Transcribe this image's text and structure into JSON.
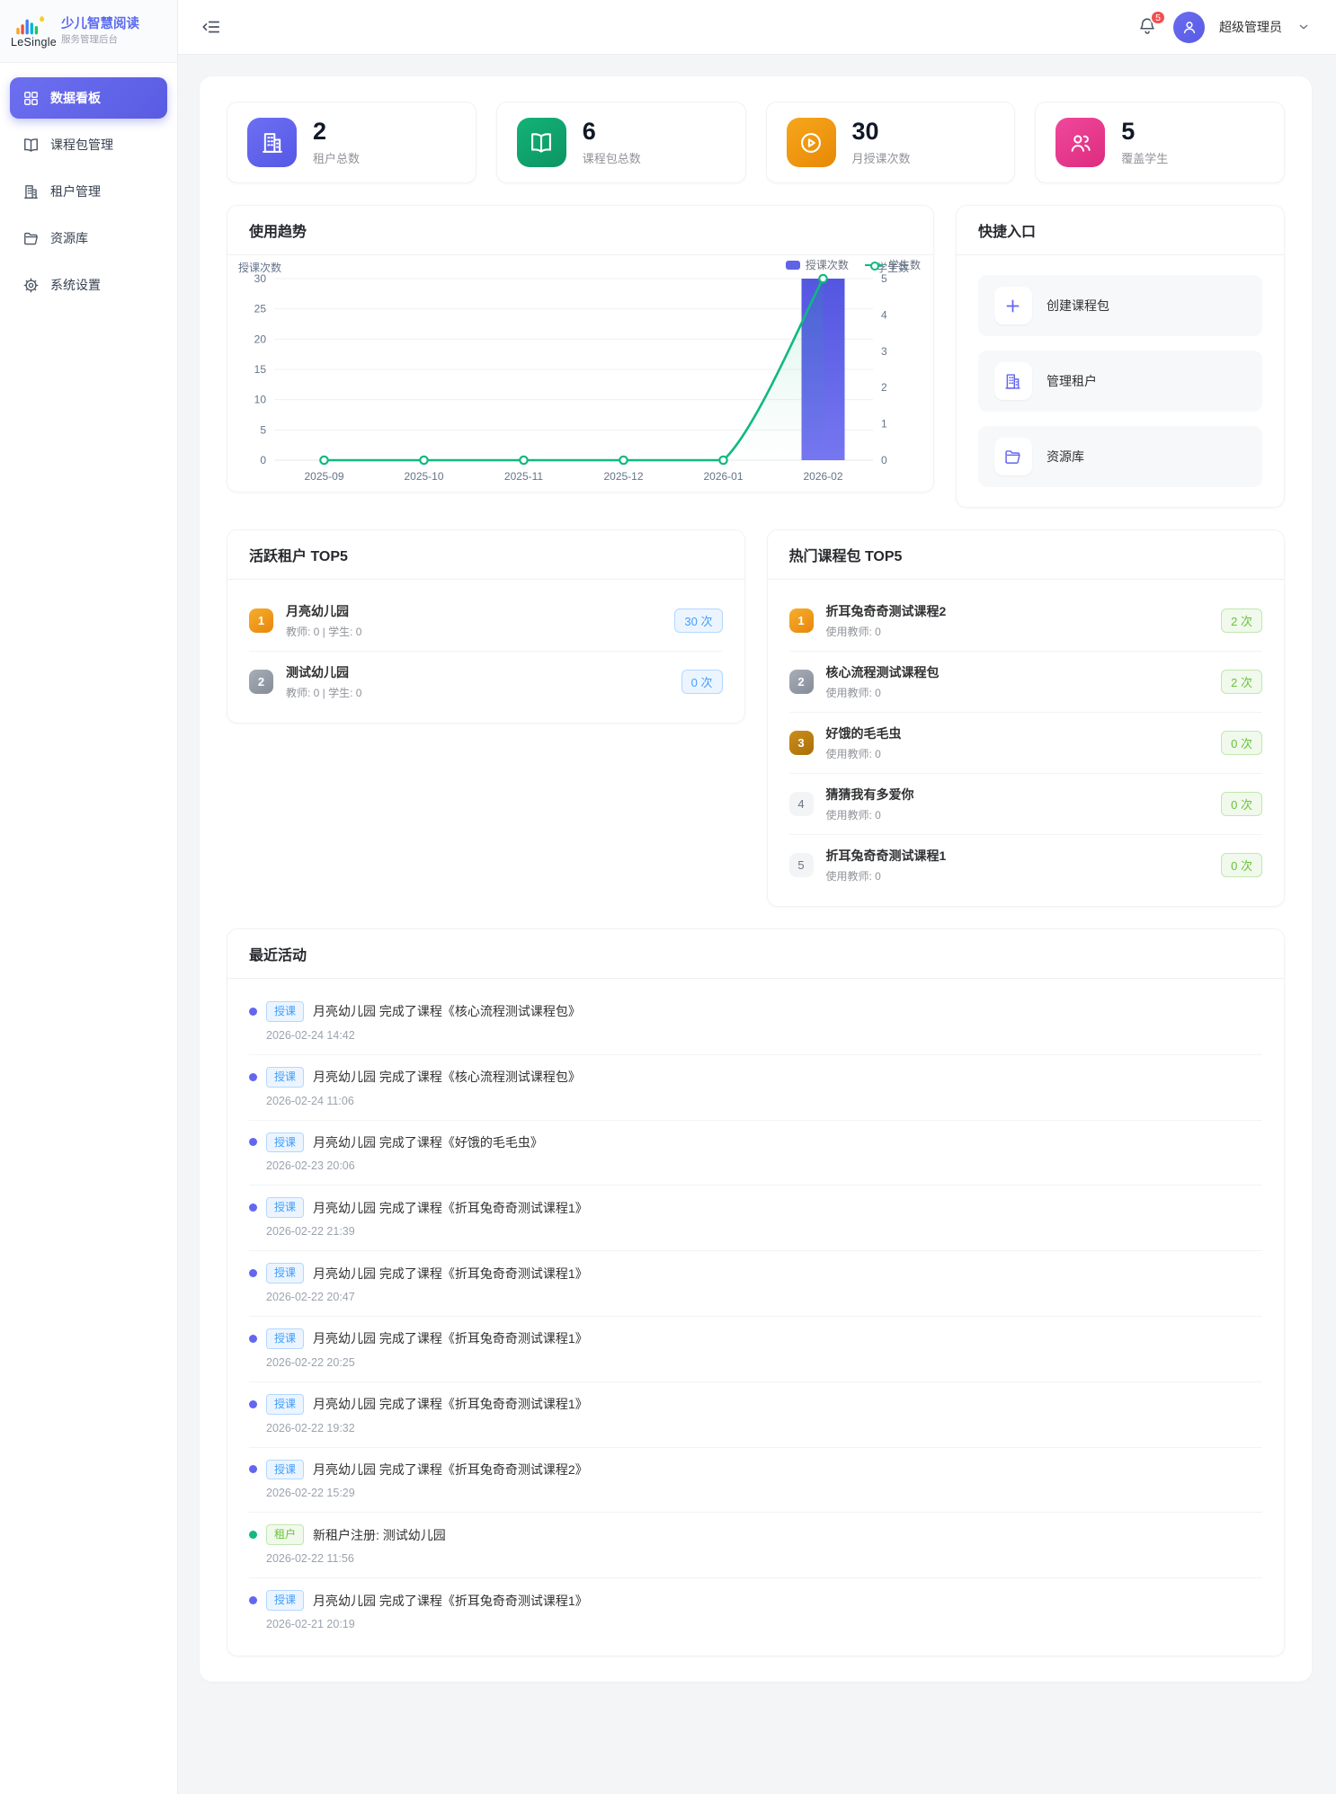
{
  "brand": {
    "logo_text": "LeSingle",
    "title": "少儿智慧阅读",
    "subtitle": "服务管理后台"
  },
  "header": {
    "notification_count": "5",
    "user_name": "超级管理员"
  },
  "sidebar": {
    "items": [
      {
        "label": "数据看板",
        "icon": "dashboard-icon",
        "active": true
      },
      {
        "label": "课程包管理",
        "icon": "book-icon",
        "active": false
      },
      {
        "label": "租户管理",
        "icon": "building-icon",
        "active": false
      },
      {
        "label": "资源库",
        "icon": "folder-icon",
        "active": false
      },
      {
        "label": "系统设置",
        "icon": "gear-icon",
        "active": false
      }
    ]
  },
  "stats": [
    {
      "value": "2",
      "label": "租户总数",
      "icon": "building-icon",
      "color1": "#6d6ff2",
      "color2": "#5558e6"
    },
    {
      "value": "6",
      "label": "课程包总数",
      "icon": "book-icon",
      "color1": "#13b377",
      "color2": "#0d9463"
    },
    {
      "value": "30",
      "label": "月授课次数",
      "icon": "play-icon",
      "color1": "#f6a71c",
      "color2": "#e88806"
    },
    {
      "value": "5",
      "label": "覆盖学生",
      "icon": "students-icon",
      "color1": "#f0489c",
      "color2": "#dd2c7f"
    }
  ],
  "trend": {
    "title": "使用趋势"
  },
  "chart_data": {
    "type": "bar",
    "title": "使用趋势",
    "categories": [
      "2025-09",
      "2025-10",
      "2025-11",
      "2025-12",
      "2026-01",
      "2026-02"
    ],
    "series": [
      {
        "name": "授课次数",
        "type": "bar",
        "axis": "left",
        "values": [
          0,
          0,
          0,
          0,
          0,
          30
        ],
        "color": "#6063e8"
      },
      {
        "name": "学生数",
        "type": "line",
        "axis": "right",
        "values": [
          0,
          0,
          0,
          0,
          0,
          5
        ],
        "color": "#10b981"
      }
    ],
    "left_axis": {
      "name": "授课次数",
      "min": 0,
      "max": 30,
      "step": 5
    },
    "right_axis": {
      "name": "学生数",
      "min": 0,
      "max": 5,
      "step": 1
    },
    "legend": [
      "授课次数",
      "学生数"
    ],
    "legend_position": "top-right",
    "grid": true
  },
  "quick": {
    "title": "快捷入口",
    "items": [
      {
        "label": "创建课程包",
        "icon": "plus-icon"
      },
      {
        "label": "管理租户",
        "icon": "building-icon"
      },
      {
        "label": "资源库",
        "icon": "folder-icon"
      }
    ]
  },
  "tenants": {
    "title": "活跃租户 TOP5",
    "badge_style": "blue",
    "items": [
      {
        "rank": "1",
        "name": "月亮幼儿园",
        "meta": "教师: 0 | 学生: 0",
        "count": "30 次"
      },
      {
        "rank": "2",
        "name": "测试幼儿园",
        "meta": "教师: 0 | 学生: 0",
        "count": "0 次"
      }
    ]
  },
  "courses": {
    "title": "热门课程包 TOP5",
    "badge_style": "green",
    "items": [
      {
        "rank": "1",
        "name": "折耳兔奇奇测试课程2",
        "meta": "使用教师: 0",
        "count": "2 次"
      },
      {
        "rank": "2",
        "name": "核心流程测试课程包",
        "meta": "使用教师: 0",
        "count": "2 次"
      },
      {
        "rank": "3",
        "name": "好饿的毛毛虫",
        "meta": "使用教师: 0",
        "count": "0 次"
      },
      {
        "rank": "4",
        "name": "猜猜我有多爱你",
        "meta": "使用教师: 0",
        "count": "0 次"
      },
      {
        "rank": "5",
        "name": "折耳兔奇奇测试课程1",
        "meta": "使用教师: 0",
        "count": "0 次"
      }
    ]
  },
  "activities": {
    "title": "最近活动",
    "items": [
      {
        "type": "teach",
        "tag": "授课",
        "text": "月亮幼儿园 完成了课程《核心流程测试课程包》",
        "time": "2026-02-24 14:42"
      },
      {
        "type": "teach",
        "tag": "授课",
        "text": "月亮幼儿园 完成了课程《核心流程测试课程包》",
        "time": "2026-02-24 11:06"
      },
      {
        "type": "teach",
        "tag": "授课",
        "text": "月亮幼儿园 完成了课程《好饿的毛毛虫》",
        "time": "2026-02-23 20:06"
      },
      {
        "type": "teach",
        "tag": "授课",
        "text": "月亮幼儿园 完成了课程《折耳兔奇奇测试课程1》",
        "time": "2026-02-22 21:39"
      },
      {
        "type": "teach",
        "tag": "授课",
        "text": "月亮幼儿园 完成了课程《折耳兔奇奇测试课程1》",
        "time": "2026-02-22 20:47"
      },
      {
        "type": "teach",
        "tag": "授课",
        "text": "月亮幼儿园 完成了课程《折耳兔奇奇测试课程1》",
        "time": "2026-02-22 20:25"
      },
      {
        "type": "teach",
        "tag": "授课",
        "text": "月亮幼儿园 完成了课程《折耳兔奇奇测试课程1》",
        "time": "2026-02-22 19:32"
      },
      {
        "type": "teach",
        "tag": "授课",
        "text": "月亮幼儿园 完成了课程《折耳兔奇奇测试课程2》",
        "time": "2026-02-22 15:29"
      },
      {
        "type": "tenant",
        "tag": "租户",
        "text": "新租户注册: 测试幼儿园",
        "time": "2026-02-22 11:56"
      },
      {
        "type": "teach",
        "tag": "授课",
        "text": "月亮幼儿园 完成了课程《折耳兔奇奇测试课程1》",
        "time": "2026-02-21 20:19"
      }
    ]
  },
  "colors": {
    "primary": "#6366f1",
    "bar": "#6063e8",
    "line": "#10b981",
    "tag_blue": "#409eff",
    "tag_green": "#67c23a",
    "badge_red": "#f34f4f"
  }
}
